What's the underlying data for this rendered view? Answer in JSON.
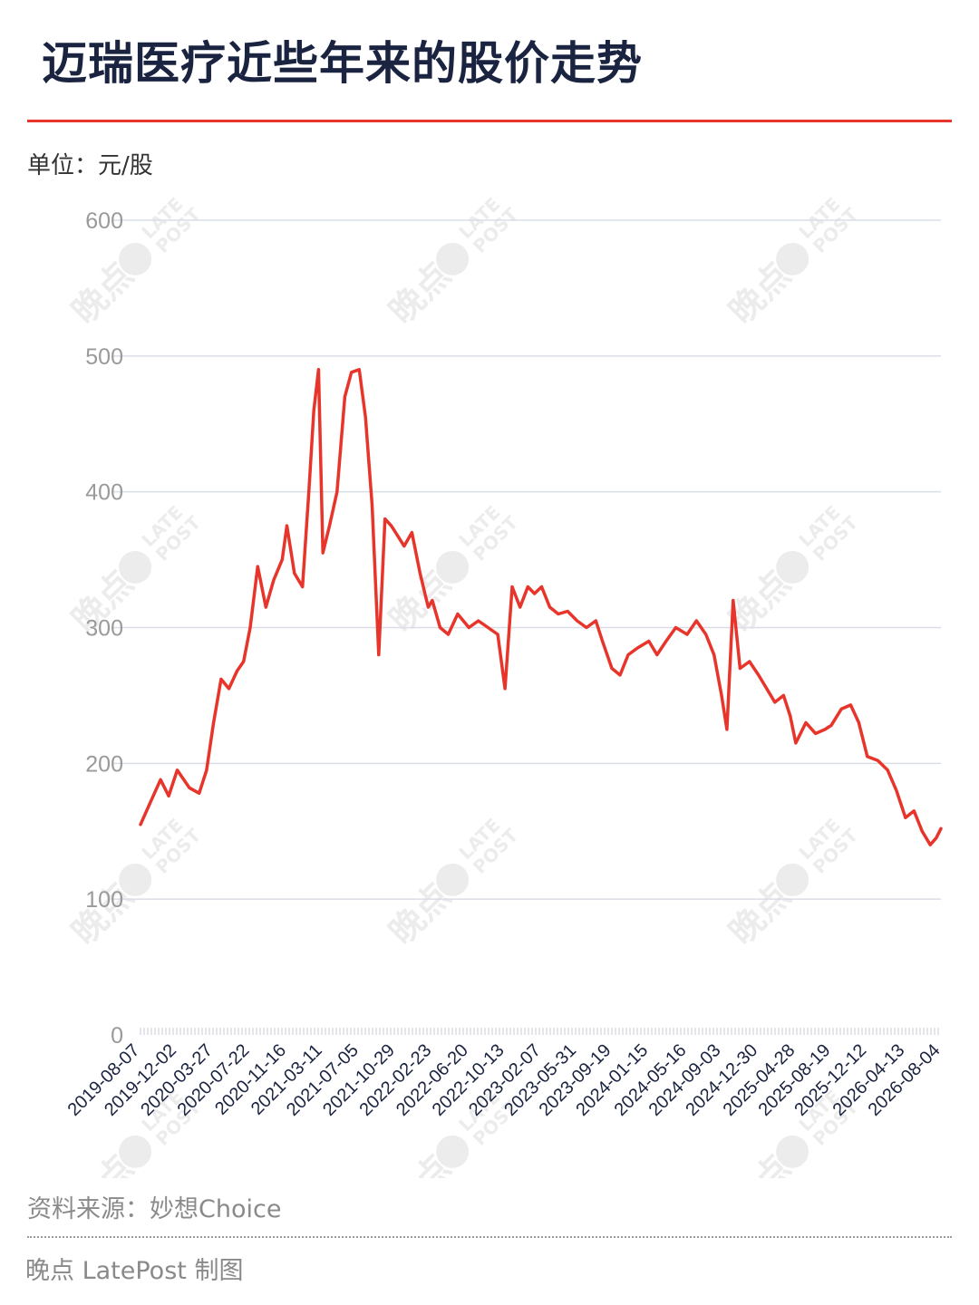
{
  "header": {
    "title": "迈瑞医疗近些年来的股价走势",
    "unit": "单位：元/股"
  },
  "footer": {
    "source": "资料来源：妙想Choice",
    "credit": "晚点 LatePost 制图"
  },
  "watermark": {
    "cn": "晚点",
    "en_line1": "LATE",
    "en_line2": "POST"
  },
  "colors": {
    "line": "#e8352b",
    "title": "#1a2340",
    "grid": "#d9dde8",
    "accent_rule": "#e8352b"
  },
  "chart_data": {
    "type": "line",
    "title": "迈瑞医疗近些年来的股价走势",
    "ylabel": "单位：元/股",
    "ylim": [
      0,
      600
    ],
    "yticks": [
      "0",
      "100",
      "200",
      "300",
      "400",
      "500",
      "600"
    ],
    "x_ticks": [
      "2019-08-07",
      "2019-12-02",
      "2020-03-27",
      "2020-07-22",
      "2020-11-16",
      "2021-03-11",
      "2021-07-05",
      "2021-10-29",
      "2022-02-23",
      "2022-06-20",
      "2022-10-13",
      "2023-02-07",
      "2023-05-31",
      "2023-09-19",
      "2024-01-15",
      "2024-05-16",
      "2024-09-03",
      "2024-12-30",
      "2025-04-28",
      "2025-08-19",
      "2025-12-12",
      "2026-04-13",
      "2026-08-04"
    ],
    "grid": true,
    "legend": "none",
    "series": [
      {
        "x": [
          "2019-08-07",
          "2019-09-05",
          "2019-10-10",
          "2019-11-05",
          "2019-12-02",
          "2020-01-10",
          "2020-02-10",
          "2020-03-05",
          "2020-03-27",
          "2020-04-20",
          "2020-05-15",
          "2020-06-10",
          "2020-07-01",
          "2020-07-22",
          "2020-08-15",
          "2020-09-10",
          "2020-10-05",
          "2020-11-01",
          "2020-11-16",
          "2020-12-10",
          "2021-01-05",
          "2021-01-25",
          "2021-02-10",
          "2021-02-25",
          "2021-03-11",
          "2021-04-01",
          "2021-04-25",
          "2021-05-20",
          "2021-06-10",
          "2021-07-05",
          "2021-07-25",
          "2021-08-15",
          "2021-09-05",
          "2021-09-25",
          "2021-10-15",
          "2021-10-29",
          "2021-11-25",
          "2021-12-20",
          "2022-01-15",
          "2022-02-10",
          "2022-02-23",
          "2022-03-20",
          "2022-04-15",
          "2022-05-15",
          "2022-06-20",
          "2022-07-20",
          "2022-08-20",
          "2022-09-20",
          "2022-10-13",
          "2022-11-05",
          "2022-11-30",
          "2022-12-25",
          "2023-01-15",
          "2023-02-07",
          "2023-03-05",
          "2023-04-01",
          "2023-05-01",
          "2023-05-31",
          "2023-06-30",
          "2023-07-30",
          "2023-08-20",
          "2023-09-19",
          "2023-10-15",
          "2023-11-10",
          "2023-12-10",
          "2024-01-15",
          "2024-02-10",
          "2024-03-10",
          "2024-04-10",
          "2024-05-16",
          "2024-06-15",
          "2024-07-15",
          "2024-08-10",
          "2024-09-03",
          "2024-09-20",
          "2024-10-10",
          "2024-11-01",
          "2024-12-01",
          "2024-12-30",
          "2025-01-25",
          "2025-02-20",
          "2025-03-20",
          "2025-04-10",
          "2025-04-28",
          "2025-05-30",
          "2025-06-30",
          "2025-07-30",
          "2025-08-19",
          "2025-09-20",
          "2025-10-20",
          "2025-11-15",
          "2025-12-12",
          "2026-01-15",
          "2026-02-15",
          "2026-03-15",
          "2026-04-13",
          "2026-05-10",
          "2026-06-05",
          "2026-07-01",
          "2026-07-20",
          "2026-08-04"
        ],
        "y": [
          155,
          170,
          188,
          176,
          195,
          182,
          178,
          195,
          230,
          262,
          255,
          268,
          275,
          300,
          345,
          315,
          335,
          350,
          375,
          340,
          330,
          400,
          460,
          490,
          355,
          375,
          400,
          470,
          488,
          490,
          455,
          390,
          280,
          380,
          375,
          370,
          360,
          370,
          340,
          315,
          320,
          300,
          295,
          310,
          300,
          305,
          300,
          295,
          255,
          330,
          315,
          330,
          325,
          330,
          315,
          310,
          312,
          305,
          300,
          305,
          290,
          270,
          265,
          280,
          285,
          290,
          280,
          290,
          300,
          295,
          305,
          295,
          280,
          250,
          225,
          320,
          270,
          275,
          265,
          255,
          245,
          250,
          235,
          215,
          230,
          222,
          225,
          228,
          240,
          243,
          230,
          205,
          202,
          195,
          180,
          160,
          165,
          150,
          140,
          145,
          152
        ]
      }
    ]
  }
}
